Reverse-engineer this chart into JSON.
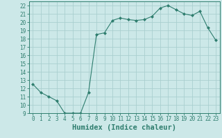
{
  "x": [
    0,
    1,
    2,
    3,
    4,
    5,
    6,
    7,
    8,
    9,
    10,
    11,
    12,
    13,
    14,
    15,
    16,
    17,
    18,
    19,
    20,
    21,
    22,
    23
  ],
  "y": [
    12.5,
    11.5,
    11.0,
    10.5,
    9.0,
    9.0,
    9.0,
    11.5,
    18.5,
    18.7,
    20.2,
    20.5,
    20.3,
    20.2,
    20.3,
    20.7,
    21.7,
    22.0,
    21.5,
    21.0,
    20.8,
    21.3,
    19.3,
    17.8
  ],
  "line_color": "#2e7d6e",
  "marker": "D",
  "marker_size": 2,
  "bg_color": "#cce8e8",
  "grid_color": "#aacfcf",
  "xlabel": "Humidex (Indice chaleur)",
  "ylabel": "",
  "ylim": [
    9,
    22.5
  ],
  "yticks": [
    9,
    10,
    11,
    12,
    13,
    14,
    15,
    16,
    17,
    18,
    19,
    20,
    21,
    22
  ],
  "xlim": [
    -0.5,
    23.5
  ],
  "xticks": [
    0,
    1,
    2,
    3,
    4,
    5,
    6,
    7,
    8,
    9,
    10,
    11,
    12,
    13,
    14,
    15,
    16,
    17,
    18,
    19,
    20,
    21,
    22,
    23
  ],
  "tick_color": "#2e7d6e",
  "axis_color": "#2e7d6e",
  "label_fontsize": 5.5,
  "xlabel_fontsize": 7.5
}
